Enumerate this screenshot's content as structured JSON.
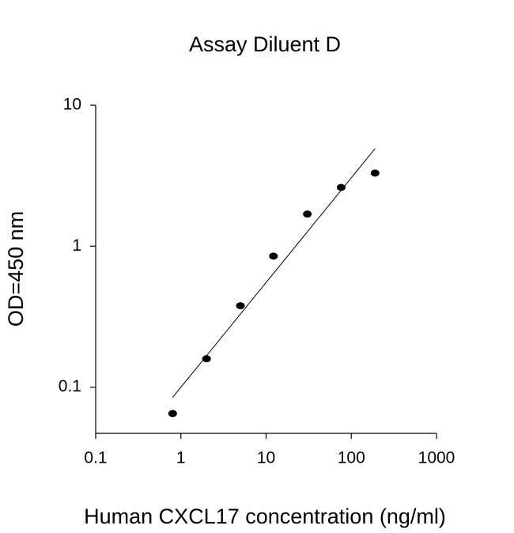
{
  "chart_data": {
    "type": "scatter",
    "title": "Assay Diluent D",
    "x_label": "Human CXCL17 concentration (ng/ml)",
    "y_label": "OD=450 nm",
    "x": [
      0.8,
      2,
      5,
      12.2,
      30.5,
      76,
      190
    ],
    "values": [
      0.065,
      0.159,
      0.378,
      0.85,
      1.69,
      2.61,
      3.3
    ],
    "color": "#000000",
    "fit_line": {
      "x": [
        0.8,
        190
      ],
      "y": [
        0.0846,
        4.92
      ]
    },
    "xscale": "log",
    "yscale": "log",
    "xlim": [
      0.1,
      1000
    ],
    "ylim": [
      0.047,
      10
    ],
    "xticks": [
      0.1,
      1,
      10,
      100,
      1000
    ],
    "yticks": [
      0.1,
      1,
      10
    ]
  }
}
